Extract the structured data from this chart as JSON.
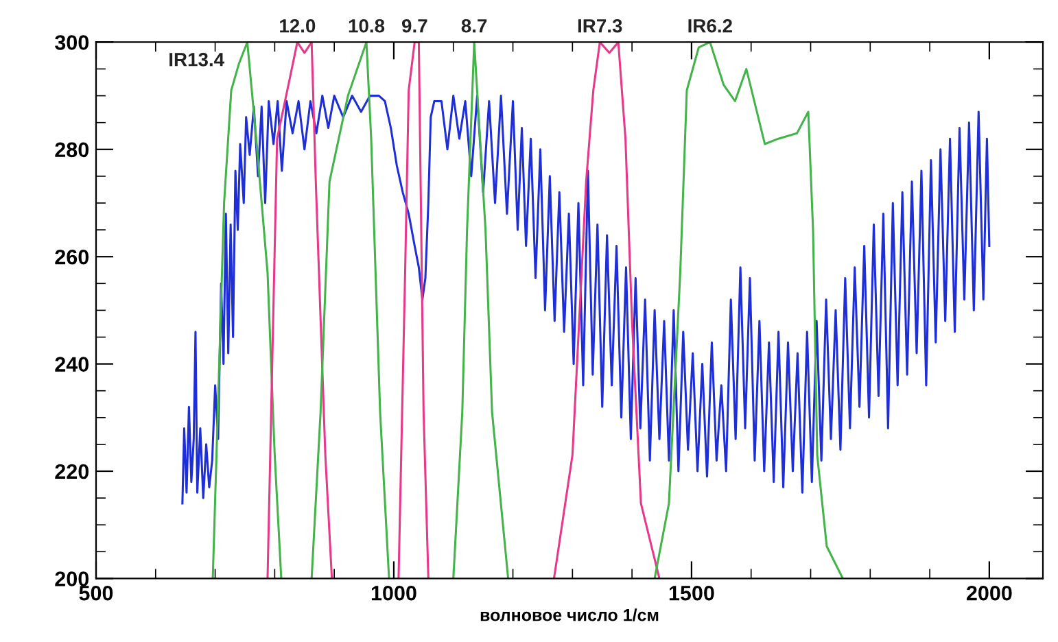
{
  "chart_data": {
    "type": "line",
    "xlabel": "волновое число 1/см",
    "xlim": [
      500,
      2090
    ],
    "ylim": [
      200,
      300
    ],
    "xticks": [
      500,
      {
        "value": 600,
        "label": null
      },
      {
        "value": 700,
        "label": null
      },
      {
        "value": 800,
        "label": null
      },
      {
        "value": 900,
        "label": null
      },
      1000,
      {
        "value": 1100,
        "label": null
      },
      {
        "value": 1200,
        "label": null
      },
      {
        "value": 1300,
        "label": null
      },
      {
        "value": 1400,
        "label": null
      },
      1500,
      {
        "value": 1600,
        "label": null
      },
      {
        "value": 1700,
        "label": null
      },
      {
        "value": 1800,
        "label": null
      },
      {
        "value": 1900,
        "label": null
      },
      2000
    ],
    "yticks": [
      200,
      {
        "value": 205,
        "label": null
      },
      {
        "value": 210,
        "label": null
      },
      {
        "value": 215,
        "label": null
      },
      220,
      {
        "value": 225,
        "label": null
      },
      {
        "value": 230,
        "label": null
      },
      {
        "value": 235,
        "label": null
      },
      240,
      {
        "value": 245,
        "label": null
      },
      {
        "value": 250,
        "label": null
      },
      {
        "value": 255,
        "label": null
      },
      260,
      {
        "value": 265,
        "label": null
      },
      {
        "value": 270,
        "label": null
      },
      {
        "value": 275,
        "label": null
      },
      280,
      {
        "value": 285,
        "label": null
      },
      {
        "value": 290,
        "label": null
      },
      {
        "value": 295,
        "label": null
      },
      300
    ],
    "grid": false,
    "legend": false,
    "marker": "none",
    "line_style": "solid",
    "series": [
      {
        "color": "#1f2fd8",
        "x": [
          645,
          648,
          652,
          656,
          660,
          664,
          667,
          670,
          675,
          680,
          685,
          690,
          695,
          700,
          705,
          710,
          714,
          718,
          722,
          726,
          730,
          734,
          738,
          742,
          748,
          752,
          758,
          765,
          772,
          778,
          784,
          790,
          798,
          805,
          812,
          820,
          830,
          840,
          850,
          860,
          870,
          880,
          890,
          900,
          915,
          930,
          945,
          960,
          975,
          985,
          995,
          1005,
          1015,
          1025,
          1035,
          1042,
          1048,
          1053,
          1058,
          1062,
          1068,
          1080,
          1090,
          1100,
          1110,
          1120,
          1130,
          1140,
          1150,
          1160,
          1170,
          1180,
          1190,
          1200,
          1208,
          1215,
          1222,
          1230,
          1238,
          1246,
          1254,
          1262,
          1270,
          1278,
          1286,
          1294,
          1302,
          1310,
          1318,
          1326,
          1334,
          1342,
          1350,
          1358,
          1366,
          1374,
          1382,
          1390,
          1398,
          1406,
          1414,
          1422,
          1430,
          1438,
          1446,
          1454,
          1462,
          1470,
          1478,
          1486,
          1494,
          1502,
          1510,
          1518,
          1526,
          1534,
          1542,
          1550,
          1558,
          1566,
          1574,
          1582,
          1590,
          1598,
          1606,
          1614,
          1622,
          1630,
          1638,
          1646,
          1654,
          1662,
          1670,
          1678,
          1686,
          1694,
          1702,
          1710,
          1718,
          1726,
          1734,
          1742,
          1750,
          1758,
          1766,
          1774,
          1782,
          1790,
          1798,
          1806,
          1814,
          1822,
          1830,
          1838,
          1846,
          1854,
          1862,
          1870,
          1878,
          1886,
          1894,
          1902,
          1910,
          1918,
          1926,
          1934,
          1942,
          1950,
          1958,
          1966,
          1974,
          1982,
          1990,
          1996,
          2000
        ],
        "values": [
          214,
          228,
          216,
          232,
          218,
          226,
          246,
          216,
          228,
          215,
          225,
          217,
          222,
          236,
          226,
          255,
          240,
          268,
          242,
          266,
          245,
          276,
          265,
          281,
          270,
          286,
          279,
          288,
          275,
          288,
          270,
          289,
          281,
          289,
          276,
          289,
          283,
          289,
          280,
          289,
          283,
          290,
          284,
          290,
          286,
          290,
          287,
          290,
          290,
          289,
          284,
          277,
          272,
          268,
          262,
          258,
          252,
          256,
          270,
          286,
          289,
          289,
          280,
          290,
          282,
          289,
          275,
          290,
          272,
          289,
          270,
          290,
          268,
          289,
          265,
          284,
          262,
          282,
          256,
          280,
          250,
          275,
          248,
          272,
          246,
          268,
          240,
          270,
          236,
          276,
          238,
          266,
          232,
          264,
          236,
          262,
          230,
          258,
          226,
          256,
          228,
          252,
          222,
          250,
          226,
          248,
          222,
          250,
          220,
          246,
          224,
          242,
          220,
          240,
          219,
          244,
          222,
          236,
          220,
          252,
          226,
          258,
          228,
          256,
          222,
          248,
          220,
          244,
          218,
          246,
          217,
          244,
          220,
          242,
          216,
          246,
          218,
          248,
          222,
          252,
          226,
          250,
          224,
          256,
          228,
          258,
          232,
          262,
          230,
          266,
          234,
          268,
          228,
          270,
          236,
          272,
          238,
          274,
          242,
          276,
          236,
          278,
          244,
          280,
          248,
          282,
          246,
          284,
          252,
          285,
          250,
          287,
          252,
          282,
          262
        ]
      },
      {
        "name": "IR13.4",
        "color": "#44b34a",
        "x": [
          696,
          715,
          727,
          740,
          754,
          769,
          788,
          800,
          811
        ],
        "values": [
          200,
          270,
          291,
          296,
          300,
          282,
          257,
          223,
          200
        ]
      },
      {
        "name": "12.0",
        "color": "#e8388a",
        "x": [
          788,
          804,
          823,
          838,
          850,
          862,
          869,
          885,
          896
        ],
        "values": [
          200,
          282,
          292,
          300,
          298,
          300,
          274,
          223,
          200
        ]
      },
      {
        "name": "10.8",
        "color": "#44b34a",
        "x": [
          862,
          877,
          892,
          923,
          954,
          962,
          977,
          992
        ],
        "values": [
          200,
          231,
          274,
          290,
          300,
          282,
          231,
          200
        ]
      },
      {
        "name": "9.7",
        "color": "#e8388a",
        "x": [
          1008,
          1019,
          1025,
          1035,
          1042,
          1050,
          1058
        ],
        "values": [
          200,
          257,
          291,
          300,
          300,
          231,
          200
        ]
      },
      {
        "name": "8.7",
        "color": "#44b34a",
        "x": [
          1100,
          1115,
          1123,
          1135,
          1154,
          1165,
          1192
        ],
        "values": [
          200,
          231,
          265,
          300,
          265,
          231,
          200
        ]
      },
      {
        "name": "IR7.3",
        "color": "#e8388a",
        "x": [
          1269,
          1300,
          1323,
          1335,
          1346,
          1362,
          1377,
          1389,
          1400,
          1415,
          1446
        ],
        "values": [
          200,
          223,
          274,
          291,
          300,
          298,
          300,
          282,
          248,
          214,
          200
        ]
      },
      {
        "name": "IR6.2",
        "color": "#44b34a",
        "x": [
          1438,
          1462,
          1481,
          1492,
          1512,
          1531,
          1554,
          1573,
          1592,
          1623,
          1646,
          1677,
          1696,
          1704,
          1711,
          1727,
          1754
        ],
        "values": [
          200,
          214,
          257,
          291,
          299,
          300,
          292,
          289,
          295,
          281,
          282,
          283,
          287,
          265,
          223,
          206,
          200
        ]
      }
    ]
  }
}
